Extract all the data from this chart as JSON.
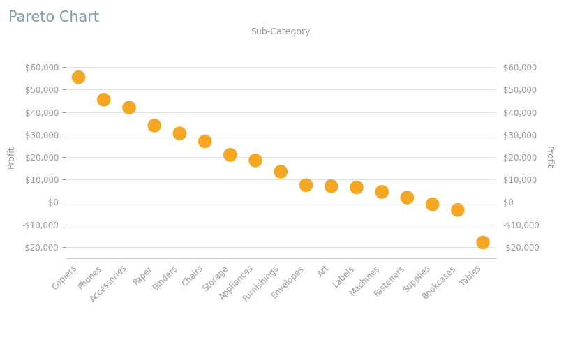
{
  "title": "Pareto Chart",
  "xlabel": "Sub-Category",
  "ylabel_left": "Profit",
  "ylabel_right": "Profit",
  "categories": [
    "Copiers",
    "Phones",
    "Accessories",
    "Paper",
    "Binders",
    "Chairs",
    "Storage",
    "Appliances",
    "Furnishings",
    "Envelopes",
    "Art",
    "Labels",
    "Machines",
    "Fasteners",
    "Supplies",
    "Bookcases",
    "Tables"
  ],
  "values": [
    55500,
    45500,
    42000,
    34000,
    30500,
    27000,
    21000,
    18500,
    13500,
    7500,
    7000,
    6500,
    4500,
    2000,
    -1000,
    -3500,
    -18000
  ],
  "dot_color": "#F5A623",
  "dot_size": 200,
  "background_color": "#FFFFFF",
  "plot_background": "#FFFFFF",
  "ylim": [
    -25000,
    65000
  ],
  "yticks": [
    -20000,
    -10000,
    0,
    10000,
    20000,
    30000,
    40000,
    50000,
    60000
  ],
  "grid_color": "#E0E0E0",
  "title_fontsize": 15,
  "axis_label_fontsize": 9,
  "tick_fontsize": 8.5,
  "xlabel_fontsize": 9,
  "title_color": "#7B9DB0",
  "tick_color": "#999999",
  "label_color": "#999999"
}
